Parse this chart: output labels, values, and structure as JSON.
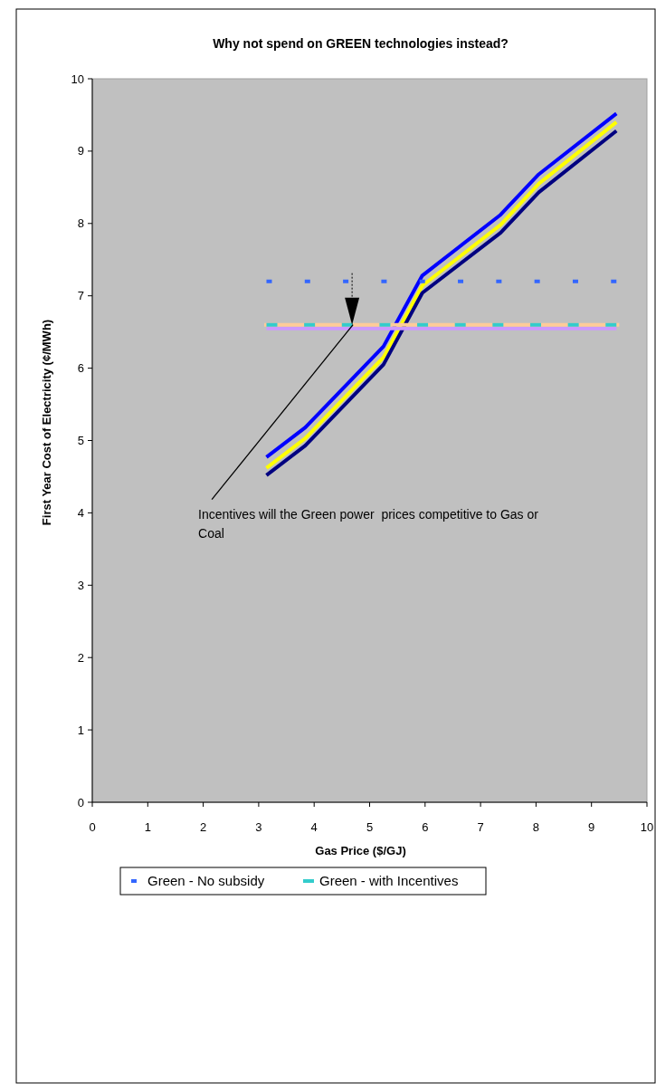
{
  "chart_data": {
    "type": "line",
    "title": "Why not spend on GREEN technologies instead?",
    "xlabel": "Gas Price ($/GJ)",
    "ylabel": "First Year Cost of Electricity (¢/MWh)",
    "xlim": [
      0,
      10
    ],
    "xticks": [
      0,
      1,
      2,
      3,
      4,
      5,
      6,
      7,
      8,
      9,
      10
    ],
    "ylim": [
      0,
      10
    ],
    "yticks": [
      0,
      1,
      2,
      3,
      4,
      5,
      6,
      7,
      8,
      9,
      10
    ],
    "legend": "bottom",
    "marker": "none",
    "series": [
      {
        "color": "#0000ff",
        "line_style": "solid",
        "x": [
          3.14,
          3.84,
          5.25,
          5.95,
          7.36,
          8.05,
          9.45
        ],
        "values": [
          4.77,
          5.18,
          6.3,
          7.28,
          8.12,
          8.68,
          9.52
        ]
      },
      {
        "color": "#ffff00",
        "line_style": "solid",
        "x": [
          3.14,
          3.84,
          5.25,
          5.95,
          7.36,
          8.05,
          9.45
        ],
        "values": [
          4.62,
          5.03,
          6.15,
          7.14,
          7.98,
          8.55,
          9.4
        ]
      },
      {
        "color": "#000080",
        "line_style": "solid",
        "x": [
          3.14,
          3.84,
          5.25,
          5.95,
          7.36,
          8.05,
          9.45
        ],
        "values": [
          4.52,
          4.93,
          6.05,
          7.04,
          7.87,
          8.43,
          9.28
        ]
      },
      {
        "name": "Green - No subsidy",
        "color": "#3366ff",
        "line_style": "dotted",
        "x": [
          3.14,
          9.45
        ],
        "values": [
          7.2,
          7.2
        ]
      },
      {
        "color": "#cc99ff",
        "line_style": "solid",
        "x": [
          3.14,
          9.45
        ],
        "values": [
          6.55,
          6.55
        ]
      },
      {
        "color": "#ffcc99",
        "line_style": "solid",
        "x": [
          3.1,
          9.5
        ],
        "values": [
          6.6,
          6.6
        ]
      },
      {
        "name": "Green - with Incentives",
        "color": "#33cccc",
        "line_style": "dashed",
        "x": [
          3.14,
          9.45
        ],
        "values": [
          6.6,
          6.6
        ]
      }
    ],
    "annotations": [
      {
        "text": "Incentives will the Green power  prices competitive to Gas or Coal",
        "x": 4.7,
        "y": 6.6
      }
    ]
  }
}
